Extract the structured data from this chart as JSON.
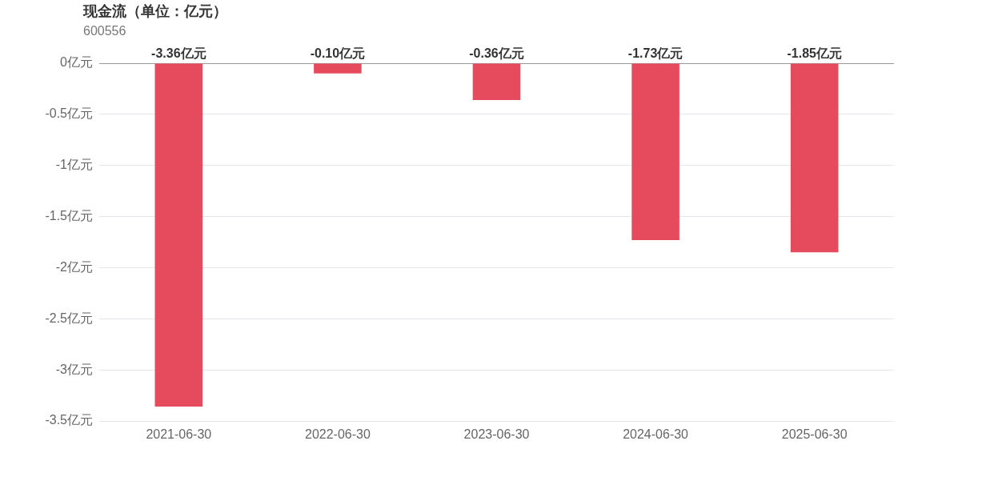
{
  "chart_data": {
    "type": "bar",
    "title": "现金流（单位：亿元）",
    "subtitle": "600556",
    "categories": [
      "2021-06-30",
      "2022-06-30",
      "2023-06-30",
      "2024-06-30",
      "2025-06-30"
    ],
    "values": [
      -3.36,
      -0.1,
      -0.36,
      -1.73,
      -1.85
    ],
    "color": "#e64b5d",
    "value_labels": [
      "-3.36亿元",
      "-0.10亿元",
      "-0.36亿元",
      "-1.73亿元",
      "-1.85亿元"
    ],
    "ylim": [
      -3.5,
      0
    ],
    "yticks": [
      {
        "value": 0,
        "label": "0亿元"
      },
      {
        "value": -0.5,
        "label": "-0.5亿元"
      },
      {
        "value": -1,
        "label": "-1亿元"
      },
      {
        "value": -1.5,
        "label": "-1.5亿元"
      },
      {
        "value": -2,
        "label": "-2亿元"
      },
      {
        "value": -2.5,
        "label": "-2.5亿元"
      },
      {
        "value": -3,
        "label": "-3亿元"
      },
      {
        "value": -3.5,
        "label": "-3.5亿元"
      }
    ],
    "grid": "y",
    "legend": false
  }
}
